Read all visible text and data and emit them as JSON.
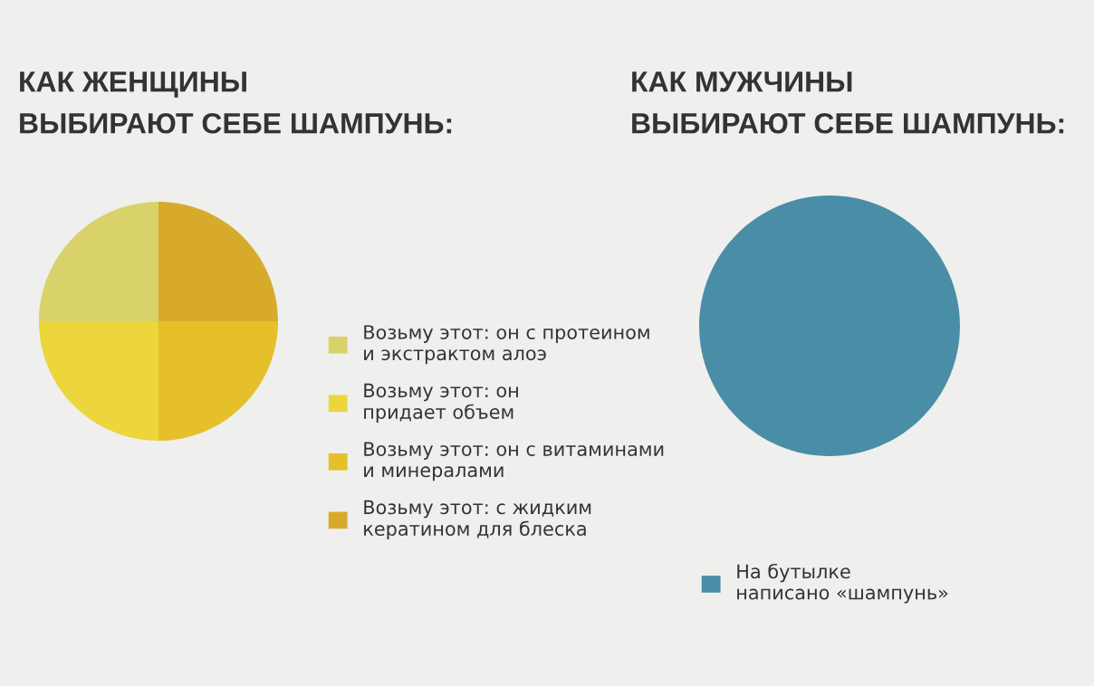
{
  "chart_data": [
    {
      "type": "pie",
      "title": "КАК ЖЕНЩИНЫ\nВЫБИРАЮТ СЕБЕ ШАМПУНЬ:",
      "categories": [
        "Возьму этот: он с протеином\nи экстрактом алоэ",
        "Возьму этот: он\nпридает объем",
        "Возьму этот: он с витаминами\nи минералами",
        "Возьму этот: с жидким\nкератином для блеска"
      ],
      "values": [
        25,
        25,
        25,
        25
      ],
      "colors": [
        "#d9d26a",
        "#ecd63c",
        "#e5c02a",
        "#d8aa2c"
      ],
      "legend": "right"
    },
    {
      "type": "pie",
      "title": "КАК МУЖЧИНЫ\nВЫБИРАЮТ СЕБЕ ШАМПУНЬ:",
      "categories": [
        "На бутылке\nнаписано «шампунь»"
      ],
      "values": [
        100
      ],
      "colors": [
        "#4a8da7"
      ],
      "legend": "bottom"
    }
  ]
}
